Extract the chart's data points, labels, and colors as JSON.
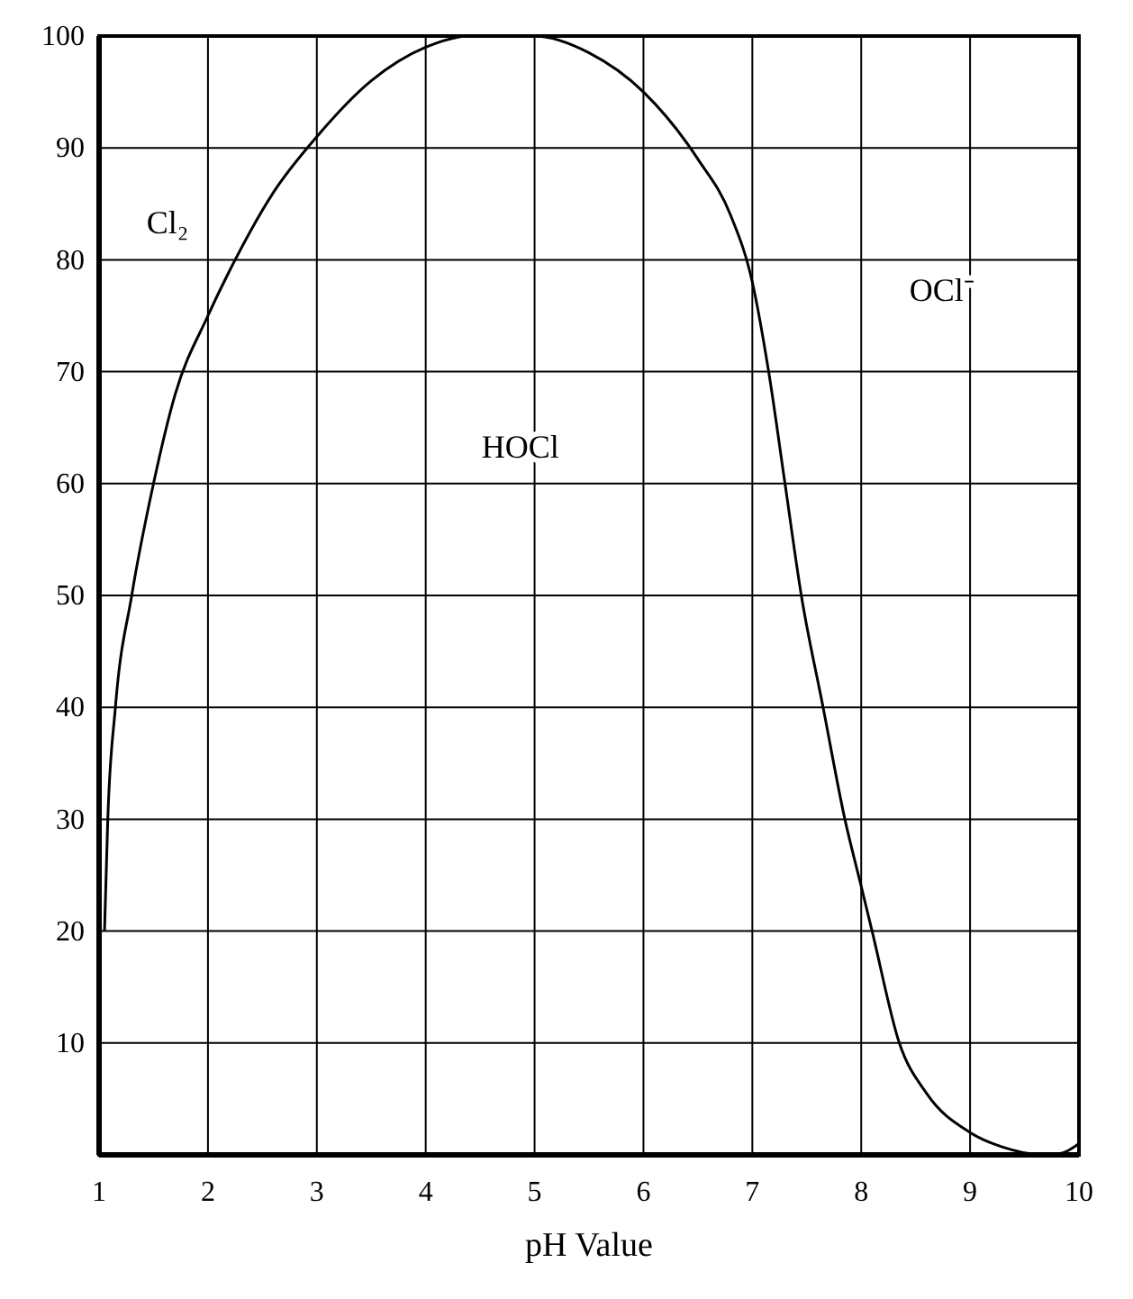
{
  "chart_data": {
    "type": "line",
    "xlabel": "pH Value",
    "x": [
      1.05,
      1.08,
      1.15,
      1.3,
      1.5,
      1.7,
      2,
      2.25,
      2.6,
      3,
      3.5,
      4,
      4.4,
      4.8,
      5,
      5.5,
      6,
      6.5,
      6.8,
      7,
      7.15,
      7.3,
      7.45,
      7.65,
      7.85,
      8,
      8.1,
      8.35,
      8.6,
      9,
      9.3,
      9.6,
      9.8,
      10
    ],
    "series": [
      {
        "color": "#000000",
        "values": [
          20,
          30,
          40,
          50,
          60,
          68,
          75,
          80,
          86,
          91,
          96,
          99,
          100,
          100,
          100,
          98.5,
          95,
          89,
          84,
          78,
          70,
          60,
          50,
          40,
          30,
          24,
          20,
          10,
          5.5,
          2,
          0.7,
          0.1,
          0.1,
          1
        ]
      }
    ],
    "xlim": [
      1,
      10
    ],
    "ylim": [
      0,
      100
    ],
    "xticks": [
      1,
      2,
      3,
      4,
      5,
      6,
      7,
      8,
      9,
      10
    ],
    "yticks": [
      10,
      20,
      30,
      40,
      50,
      60,
      70,
      80,
      90,
      100
    ],
    "grid": true,
    "marker": "none",
    "line_style": "solid",
    "annotations": [
      "Cl₂",
      "HOCl",
      "OCl⁻"
    ]
  }
}
